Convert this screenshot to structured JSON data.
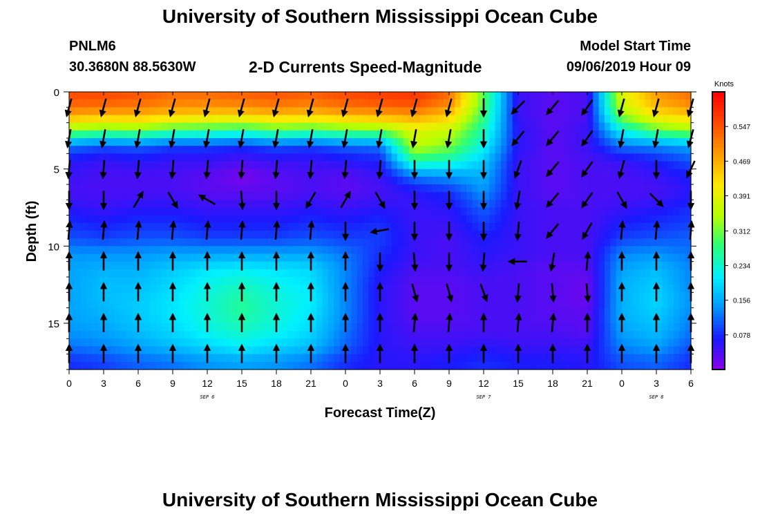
{
  "header": {
    "title": "University of Southern Mississippi Ocean Cube",
    "station": "PNLM6",
    "coordinates": "30.3680N 88.5630W",
    "subtitle": "2-D Currents Speed-Magnitude",
    "start_label": "Model Start Time",
    "start_value": "09/06/2019 Hour 09"
  },
  "footer": {
    "title": "University of Southern Mississippi Ocean Cube"
  },
  "chart_data": {
    "type": "heatmap",
    "title": "2-D Currents Speed-Magnitude",
    "xlabel": "Forecast Time(Z)",
    "ylabel": "Depth (ft)",
    "x_tick_labels": [
      "0",
      "3",
      "6",
      "9",
      "12",
      "15",
      "18",
      "21",
      "0",
      "3",
      "6",
      "9",
      "12",
      "15",
      "18",
      "21",
      "0",
      "3",
      "6"
    ],
    "x_range_hours": [
      0,
      54
    ],
    "day_labels": [
      {
        "label": "SEP 6",
        "hour": 12
      },
      {
        "label": "SEP 7",
        "hour": 36
      },
      {
        "label": "SEP 8",
        "hour": 51
      }
    ],
    "y_ticks": [
      0,
      5,
      10,
      15
    ],
    "y_range": [
      0,
      18
    ],
    "y_inverted": true,
    "colorbar": {
      "unit": "Knots",
      "ticks": [
        0.078,
        0.156,
        0.234,
        0.312,
        0.391,
        0.469,
        0.547
      ],
      "range": [
        0,
        0.625
      ],
      "colors": [
        "#8a00e6",
        "#1a1aff",
        "#0095ff",
        "#00f0ff",
        "#2aff7a",
        "#b8ff00",
        "#ffe800",
        "#ff9a00",
        "#ff4800",
        "#ff0000"
      ]
    },
    "speed_grid": {
      "depths_ft": [
        0.5,
        1.5,
        2.5,
        3.5,
        4.5,
        5.5,
        6.5,
        7.5,
        8.5,
        9.5,
        10.5,
        11.5,
        12.5,
        13.5,
        14.5,
        15.5,
        16.5,
        17.5
      ],
      "hours": [
        0,
        3,
        6,
        9,
        12,
        15,
        18,
        21,
        24,
        27,
        30,
        33,
        36,
        39,
        42,
        45,
        48,
        51,
        54
      ],
      "values": [
        [
          0.55,
          0.55,
          0.54,
          0.52,
          0.52,
          0.53,
          0.54,
          0.53,
          0.55,
          0.56,
          0.57,
          0.52,
          0.3,
          0.05,
          0.03,
          0.04,
          0.38,
          0.48,
          0.52
        ],
        [
          0.48,
          0.47,
          0.47,
          0.45,
          0.44,
          0.44,
          0.46,
          0.45,
          0.47,
          0.48,
          0.49,
          0.45,
          0.28,
          0.05,
          0.03,
          0.04,
          0.33,
          0.42,
          0.45
        ],
        [
          0.32,
          0.3,
          0.31,
          0.28,
          0.27,
          0.26,
          0.29,
          0.28,
          0.3,
          0.31,
          0.38,
          0.36,
          0.25,
          0.06,
          0.03,
          0.05,
          0.22,
          0.3,
          0.33
        ],
        [
          0.12,
          0.1,
          0.11,
          0.09,
          0.09,
          0.08,
          0.1,
          0.09,
          0.11,
          0.12,
          0.36,
          0.32,
          0.22,
          0.06,
          0.03,
          0.05,
          0.12,
          0.13,
          0.15
        ],
        [
          0.06,
          0.05,
          0.06,
          0.05,
          0.05,
          0.04,
          0.05,
          0.05,
          0.06,
          0.07,
          0.26,
          0.24,
          0.18,
          0.05,
          0.03,
          0.04,
          0.05,
          0.07,
          0.1
        ],
        [
          0.05,
          0.04,
          0.04,
          0.04,
          0.03,
          0.01,
          0.03,
          0.04,
          0.03,
          0.05,
          0.12,
          0.14,
          0.16,
          0.05,
          0.03,
          0.04,
          0.04,
          0.05,
          0.07
        ],
        [
          0.04,
          0.04,
          0.04,
          0.04,
          0.03,
          0.03,
          0.03,
          0.04,
          0.03,
          0.04,
          0.06,
          0.08,
          0.14,
          0.05,
          0.03,
          0.04,
          0.04,
          0.04,
          0.06
        ],
        [
          0.06,
          0.05,
          0.06,
          0.06,
          0.05,
          0.05,
          0.05,
          0.06,
          0.05,
          0.06,
          0.05,
          0.06,
          0.11,
          0.05,
          0.04,
          0.04,
          0.05,
          0.06,
          0.08
        ],
        [
          0.08,
          0.07,
          0.08,
          0.08,
          0.07,
          0.07,
          0.07,
          0.08,
          0.07,
          0.08,
          0.05,
          0.05,
          0.09,
          0.05,
          0.04,
          0.04,
          0.07,
          0.08,
          0.09
        ],
        [
          0.1,
          0.09,
          0.1,
          0.1,
          0.09,
          0.09,
          0.09,
          0.1,
          0.09,
          0.09,
          0.05,
          0.04,
          0.07,
          0.05,
          0.04,
          0.04,
          0.09,
          0.1,
          0.11
        ],
        [
          0.14,
          0.14,
          0.14,
          0.15,
          0.15,
          0.15,
          0.15,
          0.15,
          0.12,
          0.08,
          0.05,
          0.04,
          0.06,
          0.05,
          0.04,
          0.04,
          0.13,
          0.14,
          0.12
        ],
        [
          0.15,
          0.16,
          0.16,
          0.18,
          0.2,
          0.21,
          0.2,
          0.19,
          0.13,
          0.07,
          0.04,
          0.04,
          0.05,
          0.04,
          0.03,
          0.03,
          0.15,
          0.17,
          0.13
        ],
        [
          0.15,
          0.17,
          0.17,
          0.19,
          0.22,
          0.24,
          0.22,
          0.2,
          0.13,
          0.06,
          0.03,
          0.03,
          0.04,
          0.04,
          0.03,
          0.02,
          0.16,
          0.18,
          0.13
        ],
        [
          0.15,
          0.17,
          0.18,
          0.2,
          0.23,
          0.26,
          0.23,
          0.21,
          0.13,
          0.06,
          0.03,
          0.03,
          0.04,
          0.04,
          0.03,
          0.02,
          0.16,
          0.19,
          0.14
        ],
        [
          0.15,
          0.16,
          0.18,
          0.2,
          0.23,
          0.26,
          0.23,
          0.2,
          0.13,
          0.06,
          0.03,
          0.03,
          0.04,
          0.04,
          0.03,
          0.03,
          0.16,
          0.18,
          0.13
        ],
        [
          0.14,
          0.15,
          0.17,
          0.19,
          0.22,
          0.24,
          0.22,
          0.19,
          0.12,
          0.06,
          0.04,
          0.04,
          0.04,
          0.04,
          0.04,
          0.03,
          0.15,
          0.17,
          0.12
        ],
        [
          0.12,
          0.13,
          0.15,
          0.17,
          0.19,
          0.21,
          0.19,
          0.17,
          0.11,
          0.06,
          0.05,
          0.05,
          0.06,
          0.05,
          0.05,
          0.05,
          0.13,
          0.15,
          0.1
        ],
        [
          0.08,
          0.09,
          0.11,
          0.12,
          0.14,
          0.15,
          0.14,
          0.12,
          0.08,
          0.06,
          0.06,
          0.07,
          0.08,
          0.07,
          0.07,
          0.06,
          0.1,
          0.11,
          0.08
        ]
      ]
    },
    "vector_depths_ft": [
      1,
      3,
      5,
      7,
      9,
      11,
      13,
      15,
      17
    ],
    "vector_directions_deg": [
      [
        195,
        195,
        195,
        195,
        195,
        195,
        195,
        195,
        195,
        195,
        195,
        195,
        180,
        225,
        220,
        215,
        195,
        195,
        195
      ],
      [
        190,
        190,
        190,
        190,
        190,
        190,
        190,
        190,
        190,
        190,
        190,
        190,
        180,
        220,
        220,
        215,
        190,
        190,
        195
      ],
      [
        185,
        185,
        185,
        185,
        185,
        185,
        185,
        185,
        185,
        185,
        180,
        180,
        180,
        200,
        220,
        215,
        195,
        180,
        205
      ],
      [
        180,
        180,
        30,
        150,
        300,
        175,
        180,
        210,
        30,
        150,
        180,
        180,
        180,
        190,
        220,
        215,
        150,
        135,
        180
      ],
      [
        5,
        5,
        5,
        5,
        5,
        5,
        5,
        5,
        180,
        260,
        180,
        180,
        180,
        185,
        220,
        210,
        5,
        5,
        5
      ],
      [
        0,
        0,
        0,
        0,
        0,
        0,
        0,
        0,
        0,
        180,
        175,
        180,
        185,
        270,
        190,
        5,
        0,
        0,
        0
      ],
      [
        0,
        0,
        0,
        0,
        0,
        0,
        0,
        0,
        0,
        0,
        165,
        165,
        160,
        185,
        175,
        175,
        0,
        0,
        0
      ],
      [
        0,
        0,
        0,
        0,
        0,
        0,
        0,
        0,
        0,
        0,
        5,
        5,
        0,
        5,
        5,
        0,
        0,
        0,
        0
      ],
      [
        0,
        0,
        0,
        0,
        0,
        0,
        0,
        0,
        0,
        0,
        0,
        0,
        0,
        0,
        0,
        0,
        0,
        0,
        0
      ]
    ]
  }
}
